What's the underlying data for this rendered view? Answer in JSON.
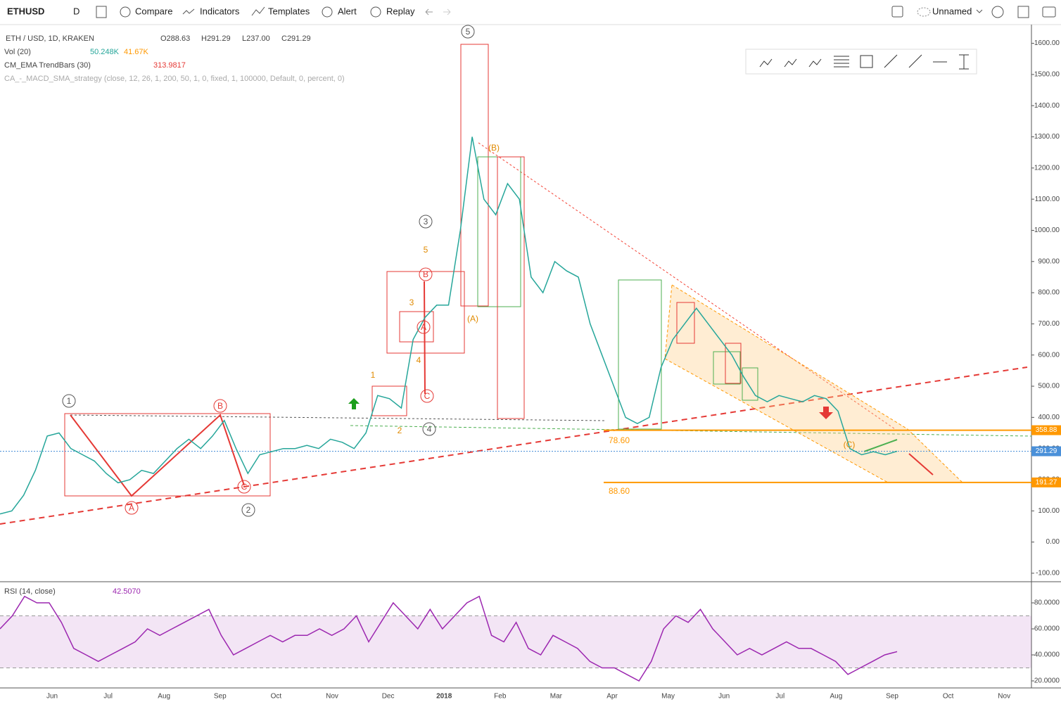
{
  "toolbar": {
    "symbol": "ETHUSD",
    "interval": "D",
    "buttons": [
      "Compare",
      "Indicators",
      "Templates",
      "Alert",
      "Replay"
    ],
    "layout_name": "Unnamed"
  },
  "legend": {
    "title": "ETH / USD, 1D, KRAKEN",
    "ohlc": [
      "O288.63",
      "H291.29",
      "L237.00",
      "C291.29"
    ],
    "volume": {
      "name": "Vol (20)",
      "values": [
        "50.248K",
        "41.67K"
      ]
    },
    "ema": {
      "name": "CM_EMA TrendBars (30)",
      "value": "313.9817"
    },
    "strategy": "CA_-_MACD_SMA_strategy (close, 12, 26, 1, 200, 50, 1, 0, fixed, 1, 100000, Default, 0, percent, 0)"
  },
  "chart_data": {
    "type": "line",
    "color": "#26a69a",
    "values": [
      90,
      100,
      150,
      230,
      340,
      350,
      300,
      280,
      260,
      220,
      190,
      200,
      230,
      220,
      260,
      300,
      330,
      300,
      340,
      390,
      300,
      220,
      280,
      290,
      300,
      300,
      310,
      300,
      330,
      320,
      300,
      350,
      470,
      460,
      430,
      650,
      720,
      760,
      760,
      1000,
      1300,
      1100,
      1050,
      1150,
      1100,
      850,
      800,
      900,
      870,
      850,
      700,
      600,
      500,
      400,
      380,
      400,
      560,
      650,
      700,
      750,
      700,
      650,
      600,
      530,
      470,
      450,
      470,
      460,
      450,
      470,
      460,
      420,
      300,
      280,
      290,
      280,
      291.29
    ],
    "ylim": [
      -125,
      1660
    ],
    "yticks": [
      {
        "value": 1600,
        "label": "1600.00"
      },
      {
        "value": 1500,
        "label": "1500.00"
      },
      {
        "value": 1400,
        "label": "1400.00"
      },
      {
        "value": 1300,
        "label": "1300.00"
      },
      {
        "value": 1200,
        "label": "1200.00"
      },
      {
        "value": 1100,
        "label": "1100.00"
      },
      {
        "value": 1000,
        "label": "1000.00"
      },
      {
        "value": 900,
        "label": "900.00"
      },
      {
        "value": 800,
        "label": "800.00"
      },
      {
        "value": 700,
        "label": "700.00"
      },
      {
        "value": 600,
        "label": "600.00"
      },
      {
        "value": 500,
        "label": "500.00"
      },
      {
        "value": 400,
        "label": "400.00"
      },
      {
        "value": 300,
        "label": "300.00"
      },
      {
        "value": 200,
        "label": "200.00"
      },
      {
        "value": 100,
        "label": "100.00"
      },
      {
        "value": 0,
        "label": "0.00"
      },
      {
        "value": -100,
        "label": "-100.00"
      }
    ],
    "price_lines": [
      {
        "value": 358.88,
        "color": "#ff9800"
      },
      {
        "value": 291.29,
        "color": "#4a90d9"
      },
      {
        "value": 191.27,
        "color": "#ff9800"
      }
    ],
    "annotations": [
      "1",
      "B",
      "A",
      "C",
      "2",
      "3",
      "4",
      "5",
      "5",
      "3",
      "4",
      "1",
      "2",
      "B",
      "A",
      "C",
      "(A)",
      "(B)",
      "(C)",
      "78.60",
      "88.60"
    ],
    "months": [
      "Jun",
      "Jul",
      "Aug",
      "Sep",
      "Oct",
      "Nov",
      "Dec",
      "2018",
      "Feb",
      "Mar",
      "Apr",
      "May",
      "Jun",
      "Jul",
      "Aug",
      "Sep",
      "Oct",
      "Nov"
    ]
  },
  "rsi": {
    "name": "RSI (14, close)",
    "last": "42.5070",
    "color": "#9c27b0",
    "values": [
      60,
      70,
      85,
      80,
      80,
      65,
      45,
      40,
      35,
      40,
      45,
      50,
      60,
      55,
      60,
      65,
      70,
      75,
      55,
      40,
      45,
      50,
      55,
      50,
      55,
      55,
      60,
      55,
      60,
      70,
      50,
      65,
      80,
      70,
      60,
      75,
      60,
      70,
      80,
      85,
      55,
      50,
      65,
      45,
      40,
      55,
      50,
      45,
      35,
      30,
      30,
      25,
      20,
      35,
      60,
      70,
      65,
      75,
      60,
      50,
      40,
      45,
      40,
      45,
      50,
      45,
      45,
      40,
      35,
      25,
      30,
      35,
      40,
      42.5
    ],
    "ylim": [
      14.6,
      95.7
    ],
    "band": [
      30,
      70
    ],
    "yticks": [
      {
        "value": 80,
        "label": "80.0000"
      },
      {
        "value": 60,
        "label": "60.0000"
      },
      {
        "value": 40,
        "label": "40.0000"
      },
      {
        "value": 20,
        "label": "20.0000"
      }
    ]
  }
}
